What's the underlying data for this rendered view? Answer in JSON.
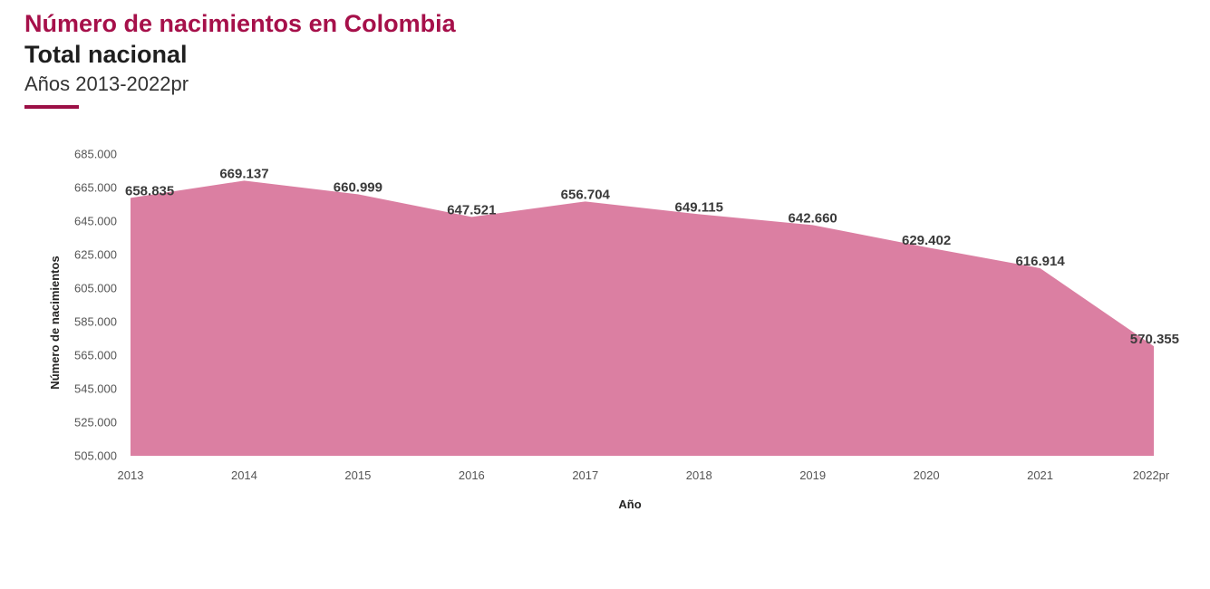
{
  "header": {
    "title": "Número de nacimientos en Colombia",
    "subtitle": "Total nacional",
    "years": "Años 2013-2022pr"
  },
  "colors": {
    "title": "#a6104a",
    "accent_rule": "#9c1046",
    "area_fill": "#db7fa2"
  },
  "chart_data": {
    "type": "area",
    "categories": [
      "2013",
      "2014",
      "2015",
      "2016",
      "2017",
      "2018",
      "2019",
      "2020",
      "2021",
      "2022pr"
    ],
    "series": [
      {
        "values": [
          658835,
          669137,
          660999,
          647521,
          656704,
          649115,
          642660,
          629402,
          616914,
          570355
        ],
        "labels": [
          "658.835",
          "669.137",
          "660.999",
          "647.521",
          "656.704",
          "649.115",
          "642.660",
          "629.402",
          "616.914",
          "570.355"
        ]
      }
    ],
    "xlabel": "Año",
    "ylabel": "Número de nacimientos",
    "ylim": [
      505000,
      685000
    ],
    "yticks": [
      505000,
      525000,
      545000,
      565000,
      585000,
      605000,
      625000,
      645000,
      665000,
      685000
    ],
    "ytick_labels": [
      "505.000",
      "525.000",
      "545.000",
      "565.000",
      "585.000",
      "605.000",
      "625.000",
      "645.000",
      "665.000",
      "685.000"
    ],
    "grid": false,
    "legend": "none"
  }
}
